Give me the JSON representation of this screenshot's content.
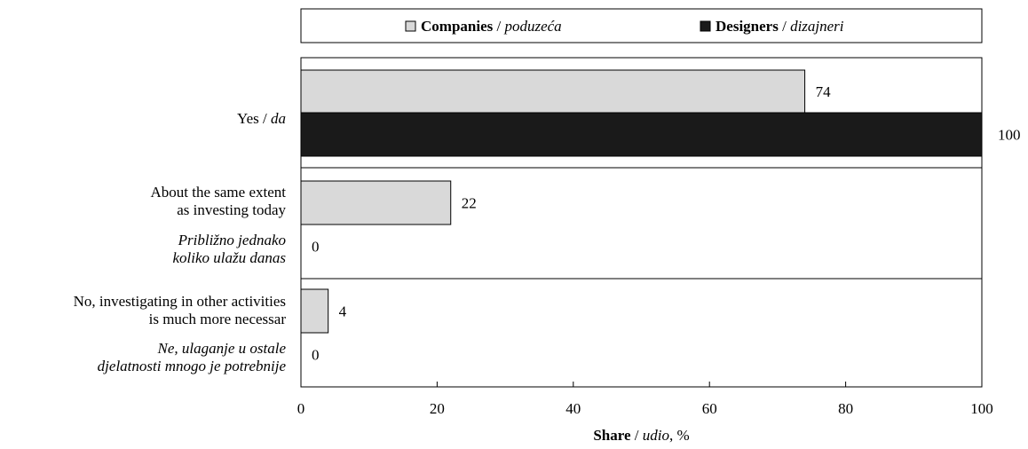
{
  "chart_data": {
    "type": "bar",
    "orientation": "horizontal",
    "categories": [
      {
        "label_lines": [
          "Yes / ",
          "da"
        ],
        "label_text": "Yes / da",
        "label_en": "Yes",
        "label_hr": "da",
        "inline": true
      },
      {
        "label_lines_en": [
          "About the same extent",
          "as investing today"
        ],
        "label_lines_hr": [
          "Približno jednako",
          "koliko ulažu danas"
        ]
      },
      {
        "label_lines_en": [
          "No, investigating in other activities",
          "is much more necessar"
        ],
        "label_lines_hr": [
          "Ne, ulaganje u ostale",
          "djelatnosti mnogo je potrebnije"
        ]
      }
    ],
    "series": [
      {
        "name_en": "Companies",
        "name_hr": "poduzeća",
        "name": "Companies / poduzeća",
        "values": [
          74,
          22,
          4
        ],
        "color": "#d9d9d9"
      },
      {
        "name_en": "Designers",
        "name_hr": "dizajneri",
        "name": "Designers / dizajneri",
        "values": [
          100,
          0,
          0
        ],
        "color": "#1a1a1a"
      }
    ],
    "data_labels": [
      [
        "74",
        "22",
        "4"
      ],
      [
        "100",
        "0",
        "0"
      ]
    ],
    "xlim": [
      0,
      100
    ],
    "xticks": [
      "0",
      "20",
      "40",
      "60",
      "80",
      "100"
    ],
    "xlabel_bold": "Share",
    "xlabel_rest": " / ",
    "xlabel_it": "udio",
    "xlabel_tail": ", %",
    "legend_placement": "top",
    "grid": false
  }
}
